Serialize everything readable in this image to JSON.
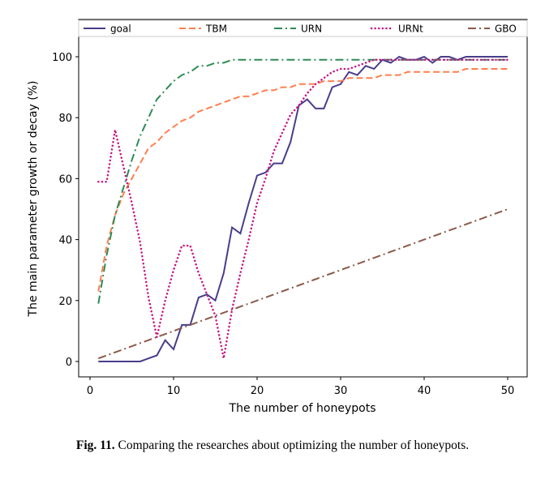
{
  "chart_data": {
    "type": "line",
    "title": "",
    "xlabel": "The number of honeypots",
    "ylabel": "The main parameter growth or decay (%)",
    "xlim": [
      -1.5,
      52
    ],
    "ylim": [
      -5,
      105
    ],
    "xticks": [
      0,
      10,
      20,
      30,
      40,
      50
    ],
    "yticks": [
      0,
      20,
      40,
      60,
      80,
      100
    ],
    "grid": false,
    "legend_position": "top",
    "x": [
      1,
      2,
      3,
      4,
      5,
      6,
      7,
      8,
      9,
      10,
      11,
      12,
      13,
      14,
      15,
      16,
      17,
      18,
      19,
      20,
      21,
      22,
      23,
      24,
      25,
      26,
      27,
      28,
      29,
      30,
      31,
      32,
      33,
      34,
      35,
      36,
      37,
      38,
      39,
      40,
      41,
      42,
      43,
      44,
      45,
      46,
      47,
      48,
      49,
      50
    ],
    "series": [
      {
        "name": "goal",
        "color": "#483d8b",
        "style": "solid",
        "values": [
          0,
          0,
          0,
          0,
          0,
          0,
          1,
          2,
          7,
          4,
          12,
          12,
          21,
          22,
          20,
          29,
          44,
          42,
          52,
          61,
          62,
          65,
          65,
          72,
          84,
          86,
          83,
          83,
          90,
          91,
          95,
          94,
          97,
          96,
          99,
          98,
          100,
          99,
          99,
          100,
          98,
          100,
          100,
          99,
          100,
          100,
          100,
          100,
          100,
          100
        ]
      },
      {
        "name": "TBM",
        "color": "#ff7f50",
        "style": "dashed",
        "values": [
          23,
          38,
          48,
          55,
          60,
          65,
          70,
          72,
          75,
          77,
          79,
          80,
          82,
          83,
          84,
          85,
          86,
          87,
          87,
          88,
          89,
          89,
          90,
          90,
          91,
          91,
          91,
          92,
          92,
          92,
          93,
          93,
          93,
          93,
          94,
          94,
          94,
          95,
          95,
          95,
          95,
          95,
          95,
          95,
          96,
          96,
          96,
          96,
          96,
          96
        ]
      },
      {
        "name": "URN",
        "color": "#2e8b57",
        "style": "dashdot",
        "values": [
          19,
          35,
          48,
          57,
          66,
          74,
          80,
          86,
          89,
          92,
          94,
          95,
          97,
          97,
          98,
          98,
          99,
          99,
          99,
          99,
          99,
          99,
          99,
          99,
          99,
          99,
          99,
          99,
          99,
          99,
          99,
          99,
          99,
          99,
          99,
          99,
          99,
          99,
          99,
          99,
          99,
          99,
          99,
          99,
          99,
          99,
          99,
          99,
          99,
          99
        ]
      },
      {
        "name": "URNt",
        "color": "#c71585",
        "style": "dotted",
        "values": [
          59,
          59,
          76,
          64,
          52,
          39,
          21,
          8,
          20,
          30,
          38,
          38,
          29,
          22,
          15,
          1,
          17,
          29,
          40,
          52,
          60,
          69,
          75,
          81,
          84,
          88,
          91,
          93,
          95,
          96,
          96,
          97,
          98,
          99,
          99,
          99,
          99,
          99,
          99,
          99,
          99,
          99,
          99,
          99,
          99,
          99,
          99,
          99,
          99,
          99
        ]
      },
      {
        "name": "GBO",
        "color": "#8b5a4a",
        "style": "dashdot",
        "values": [
          1,
          2,
          3,
          4,
          5,
          6,
          7,
          8,
          9,
          10,
          11,
          12,
          13,
          14,
          15,
          16,
          17,
          18,
          19,
          20,
          21,
          22,
          23,
          24,
          25,
          26,
          27,
          28,
          29,
          30,
          31,
          32,
          33,
          34,
          35,
          36,
          37,
          38,
          39,
          40,
          41,
          42,
          43,
          44,
          45,
          46,
          47,
          48,
          49,
          50
        ]
      }
    ]
  },
  "caption": {
    "label": "Fig. 11.",
    "text": " Comparing the researches about optimizing the number of honeypots."
  }
}
